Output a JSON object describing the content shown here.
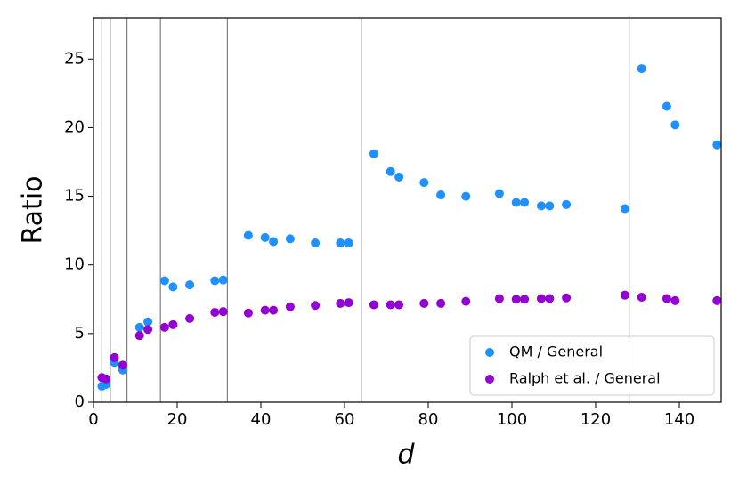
{
  "chart_data": {
    "type": "scatter",
    "x_label": "d",
    "y_label": "Ratio",
    "x": [
      2,
      3,
      5,
      7,
      11,
      13,
      17,
      19,
      23,
      29,
      31,
      37,
      41,
      43,
      47,
      53,
      59,
      61,
      67,
      71,
      73,
      79,
      83,
      89,
      97,
      101,
      103,
      107,
      109,
      113,
      127,
      131,
      137,
      139,
      149
    ],
    "series": [
      {
        "name": "QM / General",
        "color": "#1e90ff",
        "values": [
          1.17,
          1.3,
          2.9,
          2.35,
          5.45,
          5.85,
          8.85,
          8.4,
          8.55,
          8.85,
          8.9,
          12.15,
          12.0,
          11.7,
          11.9,
          11.6,
          11.6,
          11.6,
          18.1,
          16.8,
          16.4,
          16.0,
          15.1,
          15.0,
          15.2,
          14.55,
          14.55,
          14.3,
          14.3,
          14.4,
          14.1,
          24.3,
          21.55,
          20.2,
          18.75
        ]
      },
      {
        "name": "Ralph et al. / General",
        "color": "#9400d3",
        "values": [
          1.8,
          1.7,
          3.25,
          2.7,
          4.85,
          5.3,
          5.45,
          5.65,
          6.1,
          6.55,
          6.6,
          6.5,
          6.7,
          6.7,
          6.95,
          7.05,
          7.2,
          7.25,
          7.1,
          7.1,
          7.1,
          7.2,
          7.2,
          7.35,
          7.55,
          7.5,
          7.5,
          7.55,
          7.55,
          7.6,
          7.8,
          7.65,
          7.55,
          7.4,
          7.4
        ]
      }
    ],
    "vlines": [
      2,
      4,
      8,
      16,
      32,
      64,
      128
    ],
    "xlim": [
      0,
      150
    ],
    "xticks": [
      0,
      20,
      40,
      60,
      80,
      100,
      120,
      140
    ],
    "ylim": [
      0,
      28
    ],
    "yticks": [
      0,
      5,
      10,
      15,
      20,
      25
    ],
    "legend": "lower right"
  }
}
